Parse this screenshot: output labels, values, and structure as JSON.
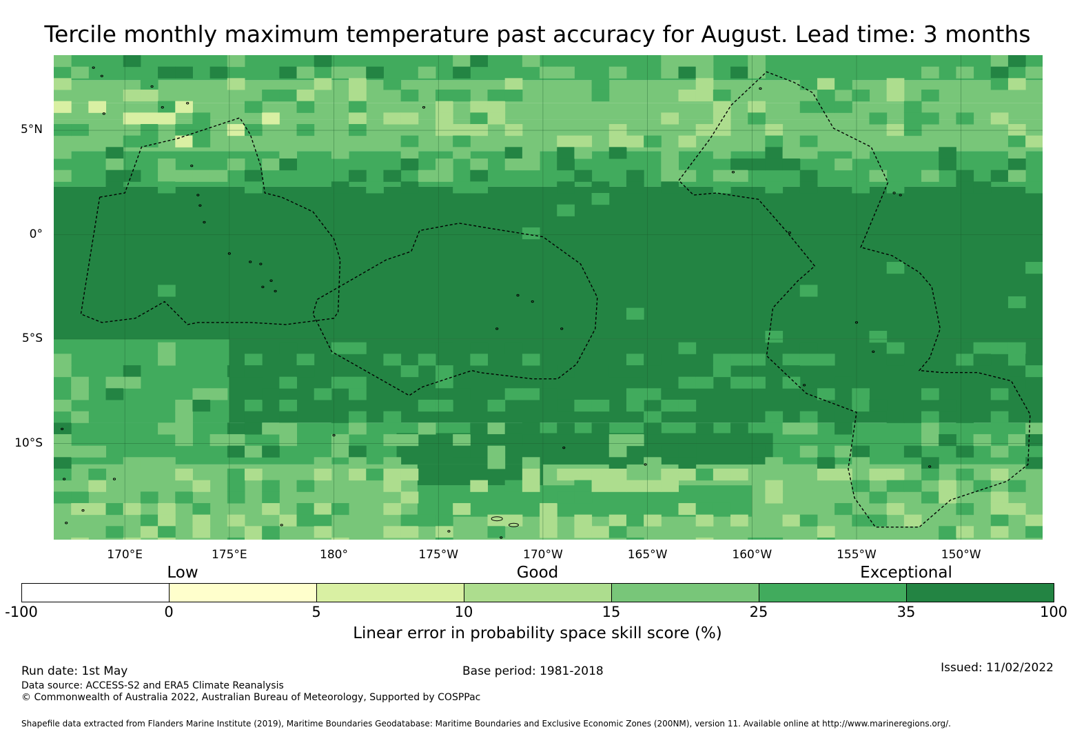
{
  "title": "Tercile monthly maximum temperature past accuracy for August. Lead time: 3 months",
  "map": {
    "lon_range": [
      166.6,
      213.9
    ],
    "lat_range": [
      -14.6,
      8.6
    ],
    "lat_ticks": [
      {
        "value": 5,
        "label": "5°N"
      },
      {
        "value": 0,
        "label": "0°"
      },
      {
        "value": -5,
        "label": "5°S"
      },
      {
        "value": -10,
        "label": "10°S"
      }
    ],
    "lon_ticks": [
      {
        "value": 170,
        "label": "170°E"
      },
      {
        "value": 175,
        "label": "175°E"
      },
      {
        "value": 180,
        "label": "180°"
      },
      {
        "value": 185,
        "label": "175°W"
      },
      {
        "value": 190,
        "label": "170°W"
      },
      {
        "value": 195,
        "label": "165°W"
      },
      {
        "value": 200,
        "label": "160°W"
      },
      {
        "value": 205,
        "label": "155°W"
      },
      {
        "value": 210,
        "label": "150°W"
      }
    ],
    "eez_outlines": [
      [
        [
          168.8,
          1.8
        ],
        [
          170.0,
          2.0
        ],
        [
          170.8,
          4.2
        ],
        [
          172.5,
          4.6
        ],
        [
          175.5,
          5.6
        ],
        [
          176.0,
          4.8
        ],
        [
          176.5,
          3.3
        ],
        [
          176.7,
          2.0
        ],
        [
          177.5,
          1.8
        ],
        [
          179.0,
          1.1
        ],
        [
          180.0,
          -0.2
        ],
        [
          180.3,
          -1.2
        ],
        [
          180.2,
          -3.7
        ],
        [
          180.0,
          -4.0
        ],
        [
          177.7,
          -4.3
        ],
        [
          176.0,
          -4.2
        ],
        [
          173.5,
          -4.2
        ],
        [
          173.0,
          -4.3
        ],
        [
          172.5,
          -3.8
        ],
        [
          171.9,
          -3.2
        ],
        [
          170.5,
          -4.0
        ],
        [
          168.9,
          -4.2
        ],
        [
          167.9,
          -3.8
        ],
        [
          168.8,
          1.8
        ]
      ],
      [
        [
          179.2,
          -3.1
        ],
        [
          182.5,
          -1.2
        ],
        [
          183.7,
          -0.8
        ],
        [
          184.1,
          0.2
        ],
        [
          186.0,
          0.55
        ],
        [
          187.5,
          0.3
        ],
        [
          190.0,
          -0.1
        ],
        [
          191.8,
          -1.4
        ],
        [
          192.6,
          -3.0
        ],
        [
          192.5,
          -4.5
        ],
        [
          191.6,
          -6.2
        ],
        [
          190.7,
          -6.9
        ],
        [
          189.5,
          -6.9
        ],
        [
          187.0,
          -6.6
        ],
        [
          186.6,
          -6.5
        ],
        [
          184.2,
          -7.3
        ],
        [
          183.6,
          -7.7
        ],
        [
          179.9,
          -5.6
        ],
        [
          179.0,
          -3.8
        ],
        [
          179.2,
          -3.1
        ]
      ],
      [
        [
          196.5,
          2.6
        ],
        [
          198.0,
          4.6
        ],
        [
          199.0,
          6.2
        ],
        [
          200.7,
          7.8
        ],
        [
          202.0,
          7.3
        ],
        [
          202.9,
          6.8
        ],
        [
          203.9,
          5.1
        ],
        [
          205.7,
          4.2
        ],
        [
          206.5,
          2.5
        ],
        [
          205.2,
          -0.6
        ],
        [
          206.7,
          -1.0
        ],
        [
          208.0,
          -1.8
        ],
        [
          208.6,
          -2.5
        ],
        [
          209.0,
          -4.5
        ],
        [
          208.5,
          -5.9
        ],
        [
          208.0,
          -6.5
        ],
        [
          209.1,
          -6.6
        ],
        [
          210.8,
          -6.6
        ],
        [
          212.4,
          -7.0
        ],
        [
          213.3,
          -8.6
        ],
        [
          213.2,
          -11.0
        ],
        [
          212.2,
          -11.8
        ],
        [
          211.0,
          -12.2
        ],
        [
          209.5,
          -12.7
        ],
        [
          208.0,
          -14.0
        ],
        [
          205.9,
          -14.0
        ],
        [
          204.9,
          -12.6
        ],
        [
          204.6,
          -11.2
        ],
        [
          205.0,
          -8.5
        ],
        [
          202.6,
          -7.6
        ],
        [
          200.7,
          -5.8
        ],
        [
          201.0,
          -3.5
        ],
        [
          202.2,
          -2.2
        ],
        [
          203.0,
          -1.5
        ],
        [
          201.7,
          0.1
        ],
        [
          200.3,
          1.7
        ],
        [
          198.3,
          2.0
        ],
        [
          197.2,
          1.9
        ],
        [
          196.5,
          2.6
        ]
      ]
    ]
  },
  "legend": {
    "categories": [
      {
        "label": "Low",
        "value": 2.5
      },
      {
        "label": "Good",
        "value": 12.5
      },
      {
        "label": "Exceptional",
        "value": 67.5
      }
    ],
    "bins": [
      {
        "from": -100,
        "to": 0,
        "color": "#ffffff"
      },
      {
        "from": 0,
        "to": 5,
        "color": "#ffffcc"
      },
      {
        "from": 5,
        "to": 10,
        "color": "#d9f0a3"
      },
      {
        "from": 10,
        "to": 15,
        "color": "#addd8e"
      },
      {
        "from": 15,
        "to": 25,
        "color": "#78c679"
      },
      {
        "from": 25,
        "to": 35,
        "color": "#41ab5d"
      },
      {
        "from": 35,
        "to": 100,
        "color": "#238443"
      }
    ],
    "tick_labels": [
      "-100",
      "0",
      "5",
      "10",
      "15",
      "25",
      "35",
      "100"
    ],
    "label": "Linear error in probability space skill score (%)"
  },
  "footer": {
    "run_date": "Run date: 1st May",
    "base_period": "Base period: 1981-2018",
    "issued": "Issued: 11/02/2022",
    "data_source": "Data source: ACCESS-S2 and ERA5 Climate Reanalysis",
    "copyright": "© Commonwealth of Australia 2022, Australian Bureau of Meteorology, Supported by COSPPac",
    "shapefile_note": "Shapefile data extracted from Flanders Marine Institute (2019), Maritime Boundaries Geodatabase: Maritime Boundaries and Exclusive Economic Zones (200NM), version 11. Available online at http://www.marineregions.org/."
  }
}
